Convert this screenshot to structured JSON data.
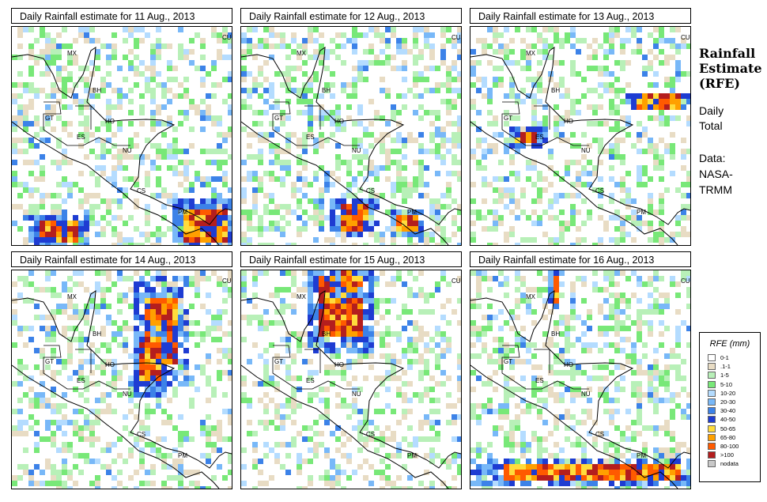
{
  "panels": [
    {
      "title": "Daily Rainfall estimate for  11 Aug., 2013",
      "seed": 11,
      "hot": [
        [
          0.88,
          0.9,
          0.1,
          0.08
        ],
        [
          0.2,
          0.92,
          0.08,
          0.05
        ]
      ],
      "wet": 0.42
    },
    {
      "title": "Daily Rainfall estimate for  12 Aug., 2013",
      "seed": 12,
      "hot": [
        [
          0.5,
          0.86,
          0.07,
          0.06
        ],
        [
          0.74,
          0.88,
          0.05,
          0.04
        ]
      ],
      "wet": 0.45
    },
    {
      "title": "Daily Rainfall estimate for  13 Aug., 2013",
      "seed": 13,
      "hot": [
        [
          0.85,
          0.33,
          0.1,
          0.03
        ],
        [
          0.25,
          0.5,
          0.05,
          0.03
        ]
      ],
      "wet": 0.4
    },
    {
      "title": "Daily Rainfall estimate for  14 Aug., 2013",
      "seed": 14,
      "hot": [
        [
          0.66,
          0.27,
          0.08,
          0.16
        ],
        [
          0.62,
          0.4,
          0.05,
          0.1
        ]
      ],
      "wet": 0.38
    },
    {
      "title": "Daily Rainfall estimate for  15 Aug., 2013",
      "seed": 15,
      "hot": [
        [
          0.44,
          0.15,
          0.1,
          0.14
        ],
        [
          0.47,
          0.04,
          0.04,
          0.05
        ]
      ],
      "wet": 0.35
    },
    {
      "title": "Daily Rainfall estimate for  16 Aug., 2013",
      "seed": 16,
      "hot": [
        [
          0.55,
          0.91,
          0.4,
          0.04
        ],
        [
          0.38,
          0.07,
          0.02,
          0.06
        ]
      ],
      "wet": 0.4
    }
  ],
  "country_labels": [
    "MX",
    "BH",
    "GT",
    "HO",
    "ES",
    "NU",
    "CS",
    "PM",
    "CU"
  ],
  "sidebar": {
    "title_1": "Rainfall",
    "title_2": "Estimate",
    "title_3": "(RFE)",
    "line_1": "Daily",
    "line_2": "Total",
    "line_3": "Data:",
    "line_4": "NASA-",
    "line_5": "TRMM"
  },
  "legend": {
    "title": "RFE (mm)",
    "items": [
      {
        "label": "0-1",
        "color": "#ffffff"
      },
      {
        "label": ".1-1",
        "color": "#e8dcc4"
      },
      {
        "label": "1-5",
        "color": "#b8f0b8"
      },
      {
        "label": "5-10",
        "color": "#78e878"
      },
      {
        "label": "10-20",
        "color": "#b4dcff"
      },
      {
        "label": "20-30",
        "color": "#78b8f8"
      },
      {
        "label": "30-40",
        "color": "#3c82e8"
      },
      {
        "label": "40-50",
        "color": "#1e3cd2"
      },
      {
        "label": "50-65",
        "color": "#ffdc3c"
      },
      {
        "label": "65-80",
        "color": "#ffa000"
      },
      {
        "label": "80-100",
        "color": "#ff5a00"
      },
      {
        "label": ">100",
        "color": "#b41e1e"
      },
      {
        "label": "nodata",
        "color": "#c8c8c8"
      }
    ]
  }
}
